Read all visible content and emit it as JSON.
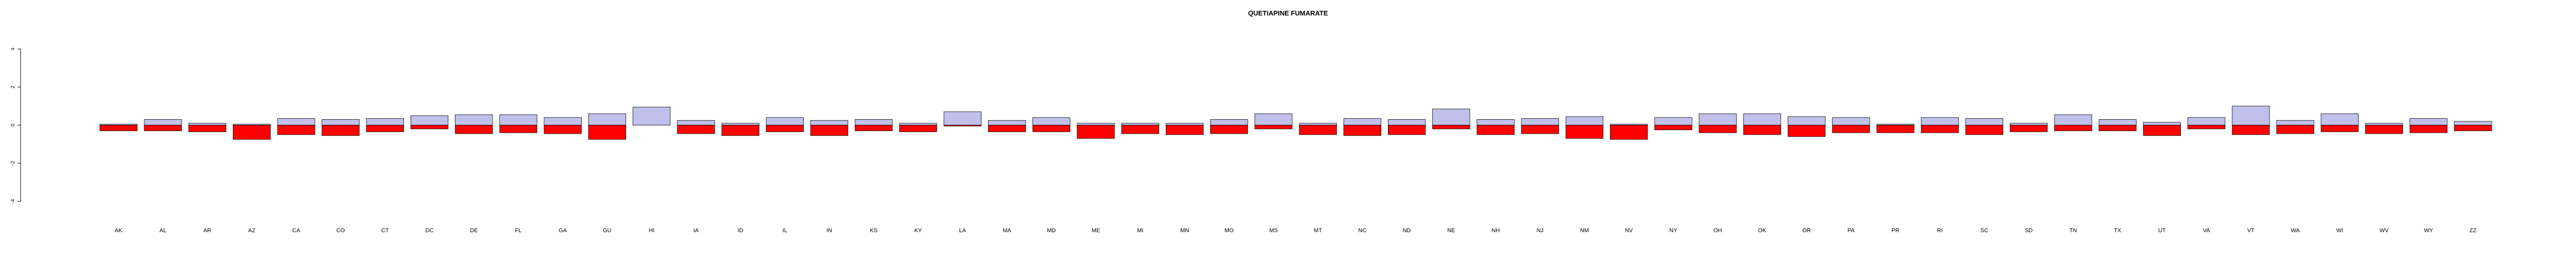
{
  "chart_data": {
    "type": "bar",
    "title": "QUETIAPINE FUMARATE",
    "xlabel": "",
    "ylabel": "",
    "ylim": [
      -4,
      4
    ],
    "yticks": [
      -4,
      -2,
      0,
      2,
      4
    ],
    "ytick_labels": [
      "-4",
      "-2",
      "0",
      "2",
      "4"
    ],
    "colors": {
      "positive": "#c0c0ea",
      "negative": "#ff0000",
      "axis": "#000000"
    },
    "categories": [
      "AK",
      "AL",
      "AR",
      "AZ",
      "CA",
      "CO",
      "CT",
      "DC",
      "DE",
      "FL",
      "GA",
      "GU",
      "HI",
      "IA",
      "ID",
      "IL",
      "IN",
      "KS",
      "KY",
      "LA",
      "MA",
      "MD",
      "ME",
      "MI",
      "MN",
      "MO",
      "MS",
      "MT",
      "NC",
      "ND",
      "NE",
      "NH",
      "NJ",
      "NM",
      "NV",
      "NY",
      "OH",
      "OK",
      "OR",
      "PA",
      "PR",
      "RI",
      "SC",
      "SD",
      "TN",
      "TX",
      "UT",
      "VA",
      "VT",
      "WA",
      "WI",
      "WV",
      "WY",
      "ZZ"
    ],
    "series": [
      {
        "name": "positive",
        "values": [
          0.05,
          0.3,
          0.1,
          0.05,
          0.35,
          0.3,
          0.35,
          0.5,
          0.55,
          0.55,
          0.4,
          0.6,
          0.95,
          0.25,
          0.1,
          0.4,
          0.25,
          0.3,
          0.1,
          0.7,
          0.25,
          0.4,
          0.1,
          0.1,
          0.1,
          0.3,
          0.6,
          0.1,
          0.35,
          0.3,
          0.85,
          0.3,
          0.35,
          0.45,
          0.05,
          0.4,
          0.6,
          0.6,
          0.45,
          0.4,
          0.05,
          0.4,
          0.35,
          0.1,
          0.55,
          0.3,
          0.15,
          0.4,
          1.0,
          0.25,
          0.6,
          0.1,
          0.35,
          0.2
        ]
      },
      {
        "name": "negative",
        "values": [
          -0.3,
          -0.3,
          -0.35,
          -0.75,
          -0.5,
          -0.55,
          -0.35,
          -0.2,
          -0.45,
          -0.4,
          -0.45,
          -0.75,
          0.0,
          -0.45,
          -0.55,
          -0.35,
          -0.55,
          -0.3,
          -0.35,
          -0.05,
          -0.35,
          -0.35,
          -0.7,
          -0.45,
          -0.5,
          -0.45,
          -0.2,
          -0.5,
          -0.55,
          -0.5,
          -0.2,
          -0.5,
          -0.45,
          -0.7,
          -0.75,
          -0.25,
          -0.4,
          -0.5,
          -0.6,
          -0.4,
          -0.4,
          -0.4,
          -0.5,
          -0.35,
          -0.3,
          -0.3,
          -0.55,
          -0.2,
          -0.5,
          -0.45,
          -0.35,
          -0.45,
          -0.4,
          -0.3
        ]
      }
    ]
  }
}
